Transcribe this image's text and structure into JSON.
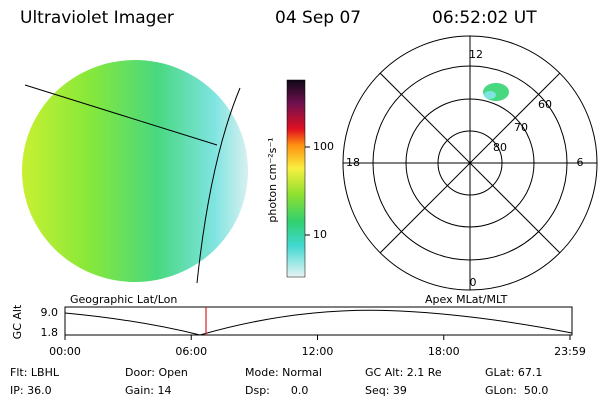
{
  "header": {
    "title": "Ultraviolet Imager",
    "date": "04 Sep 07",
    "time": "06:52:02 UT"
  },
  "colorbar": {
    "label": "photon cm⁻²s⁻¹",
    "ticks": [
      "100",
      "10"
    ]
  },
  "polar": {
    "mlt_labels": [
      "12",
      "18",
      "6",
      "0"
    ],
    "mlat_labels": [
      "60",
      "70",
      "80"
    ]
  },
  "projection_labels": {
    "left": "Geographic Lat/Lon",
    "right": "Apex MLat/MLT"
  },
  "altitude_plot": {
    "axis_label": "GC Alt",
    "yticks": [
      "9.0",
      "1.8"
    ],
    "xticks": [
      "00:00",
      "06:00",
      "12:00",
      "18:00",
      "23:59"
    ]
  },
  "status": {
    "rows": [
      [
        "Flt: LBHL",
        "Door: Open",
        "Mode: Normal",
        "GC Alt: 2.1 Re",
        "GLat: 67.1"
      ],
      [
        "IP: 36.0",
        "Gain: 14",
        "Dsp:      0.0",
        "Seq: 39",
        "GLon:  50.0"
      ]
    ]
  }
}
